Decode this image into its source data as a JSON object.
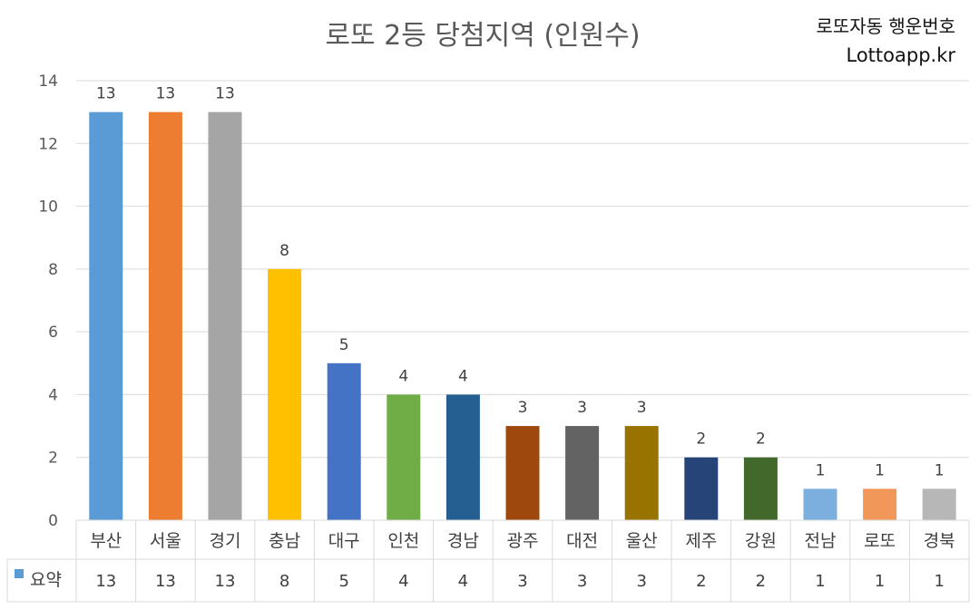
{
  "chart_data": {
    "type": "bar",
    "title": "로또 2등 당첨지역 (인원수)",
    "categories": [
      "부산",
      "서울",
      "경기",
      "충남",
      "대구",
      "인천",
      "경남",
      "광주",
      "대전",
      "울산",
      "제주",
      "강원",
      "전남",
      "로또",
      "경북"
    ],
    "series": [
      {
        "name": "요약",
        "values": [
          13,
          13,
          13,
          8,
          5,
          4,
          4,
          3,
          3,
          3,
          2,
          2,
          1,
          1,
          1
        ]
      }
    ],
    "bar_colors": [
      "#5b9bd5",
      "#ed7d31",
      "#a5a5a5",
      "#ffc000",
      "#4472c4",
      "#70ad47",
      "#255e91",
      "#9e480e",
      "#636363",
      "#997300",
      "#264478",
      "#43682b",
      "#7cafdd",
      "#f1975a",
      "#b7b7b7"
    ],
    "legend_swatch_color": "#5b9bd5",
    "ylim": [
      0,
      14
    ],
    "yticks": [
      0,
      2,
      4,
      6,
      8,
      10,
      12,
      14
    ],
    "grid": true,
    "data_table": true
  },
  "brand": {
    "line1": "로또자동 행운번호",
    "line2": "Lottoapp.kr"
  }
}
